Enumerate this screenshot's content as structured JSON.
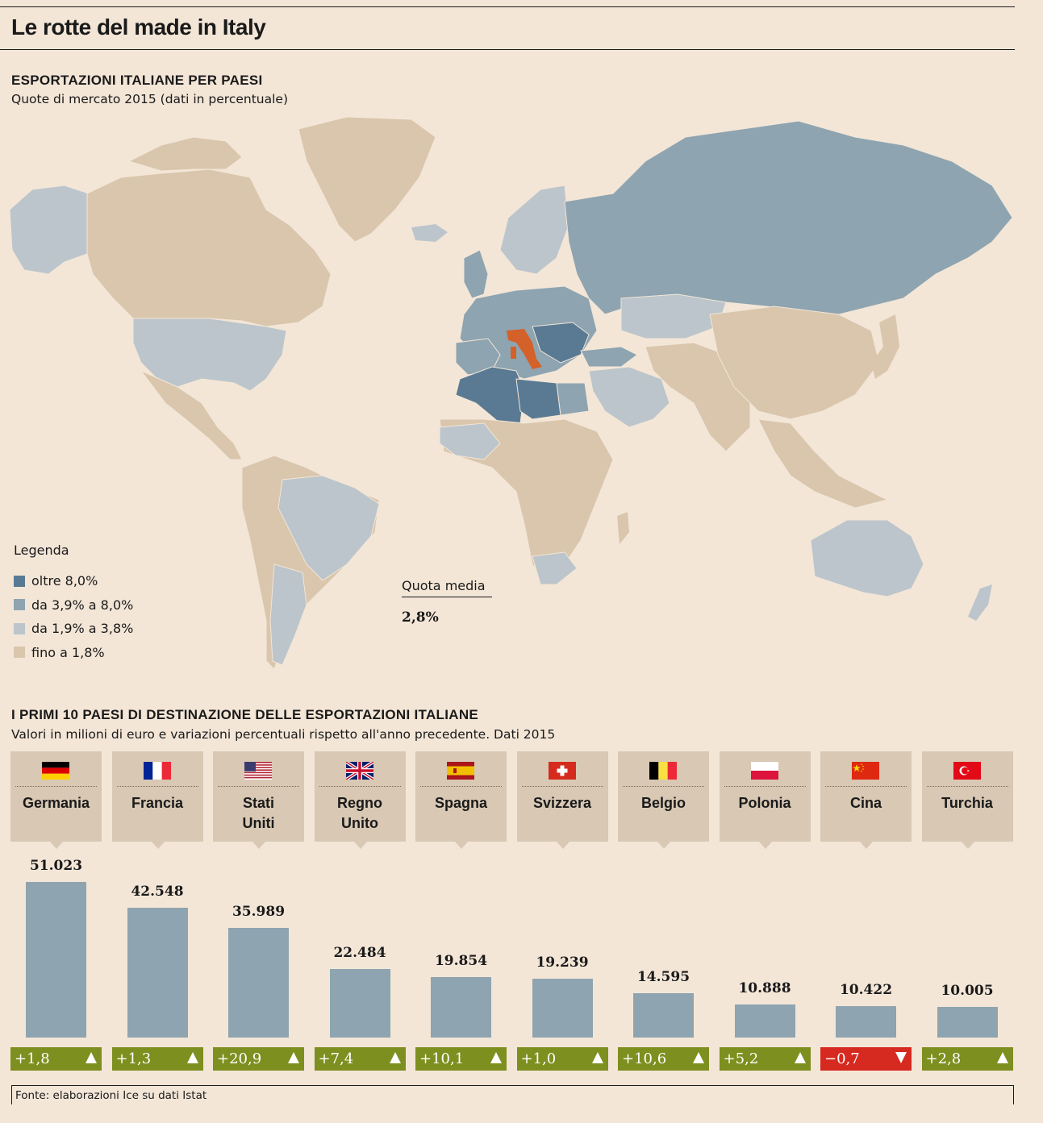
{
  "title": "Le rotte del made in Italy",
  "map_section": {
    "heading": "ESPORTAZIONI ITALIANE PER PAESI",
    "subheading": "Quote di mercato 2015 (dati in percentuale)",
    "legend_title": "Legenda",
    "legend": [
      {
        "label": "oltre 8,0%",
        "color": "#5a7a93"
      },
      {
        "label": "da 3,9% a 8,0%",
        "color": "#8ea4b0"
      },
      {
        "label": "da 1,9% a 3,8%",
        "color": "#bcc5cb"
      },
      {
        "label": "fino a 1,8%",
        "color": "#d9c6ad"
      }
    ],
    "highlight_color": "#d4612a",
    "average_label": "Quota media",
    "average_value": "2,8%"
  },
  "bar_section": {
    "heading": "I PRIMI 10 PAESI DI DESTINAZIONE DELLE ESPORTAZIONI ITALIANE",
    "subheading": "Valori in milioni di euro e variazioni percentuali rispetto all'anno precedente. Dati 2015"
  },
  "chart_data": {
    "type": "bar",
    "categories": [
      "Germania",
      "Francia",
      "Stati Uniti",
      "Regno Unito",
      "Spagna",
      "Svizzera",
      "Belgio",
      "Polonia",
      "Cina",
      "Turchia"
    ],
    "values": [
      51023,
      42548,
      35989,
      22484,
      19854,
      19239,
      14595,
      10888,
      10422,
      10005
    ],
    "value_labels": [
      "51.023",
      "42.548",
      "35.989",
      "22.484",
      "19.854",
      "19.239",
      "14.595",
      "10.888",
      "10.422",
      "10.005"
    ],
    "changes": [
      "+1,8",
      "+1,3",
      "+20,9",
      "+7,4",
      "+10,1",
      "+1,0",
      "+10,6",
      "+5,2",
      "−0,7",
      "+2,8"
    ],
    "change_direction": [
      "up",
      "up",
      "up",
      "up",
      "up",
      "up",
      "up",
      "up",
      "down",
      "up"
    ],
    "name_lines": [
      [
        "Germania"
      ],
      [
        "Francia"
      ],
      [
        "Stati",
        "Uniti"
      ],
      [
        "Regno",
        "Unito"
      ],
      [
        "Spagna"
      ],
      [
        "Svizzera"
      ],
      [
        "Belgio"
      ],
      [
        "Polonia"
      ],
      [
        "Cina"
      ],
      [
        "Turchia"
      ]
    ],
    "flags": [
      "germany-flag",
      "france-flag",
      "usa-flag",
      "uk-flag",
      "spain-flag",
      "switzerland-flag",
      "belgium-flag",
      "poland-flag",
      "china-flag",
      "turkey-flag"
    ],
    "bar_color": "#8ea4b0",
    "positive_color": "#7d8f1f",
    "negative_color": "#d6291f"
  },
  "source": "Fonte: elaborazioni Ice su dati Istat"
}
